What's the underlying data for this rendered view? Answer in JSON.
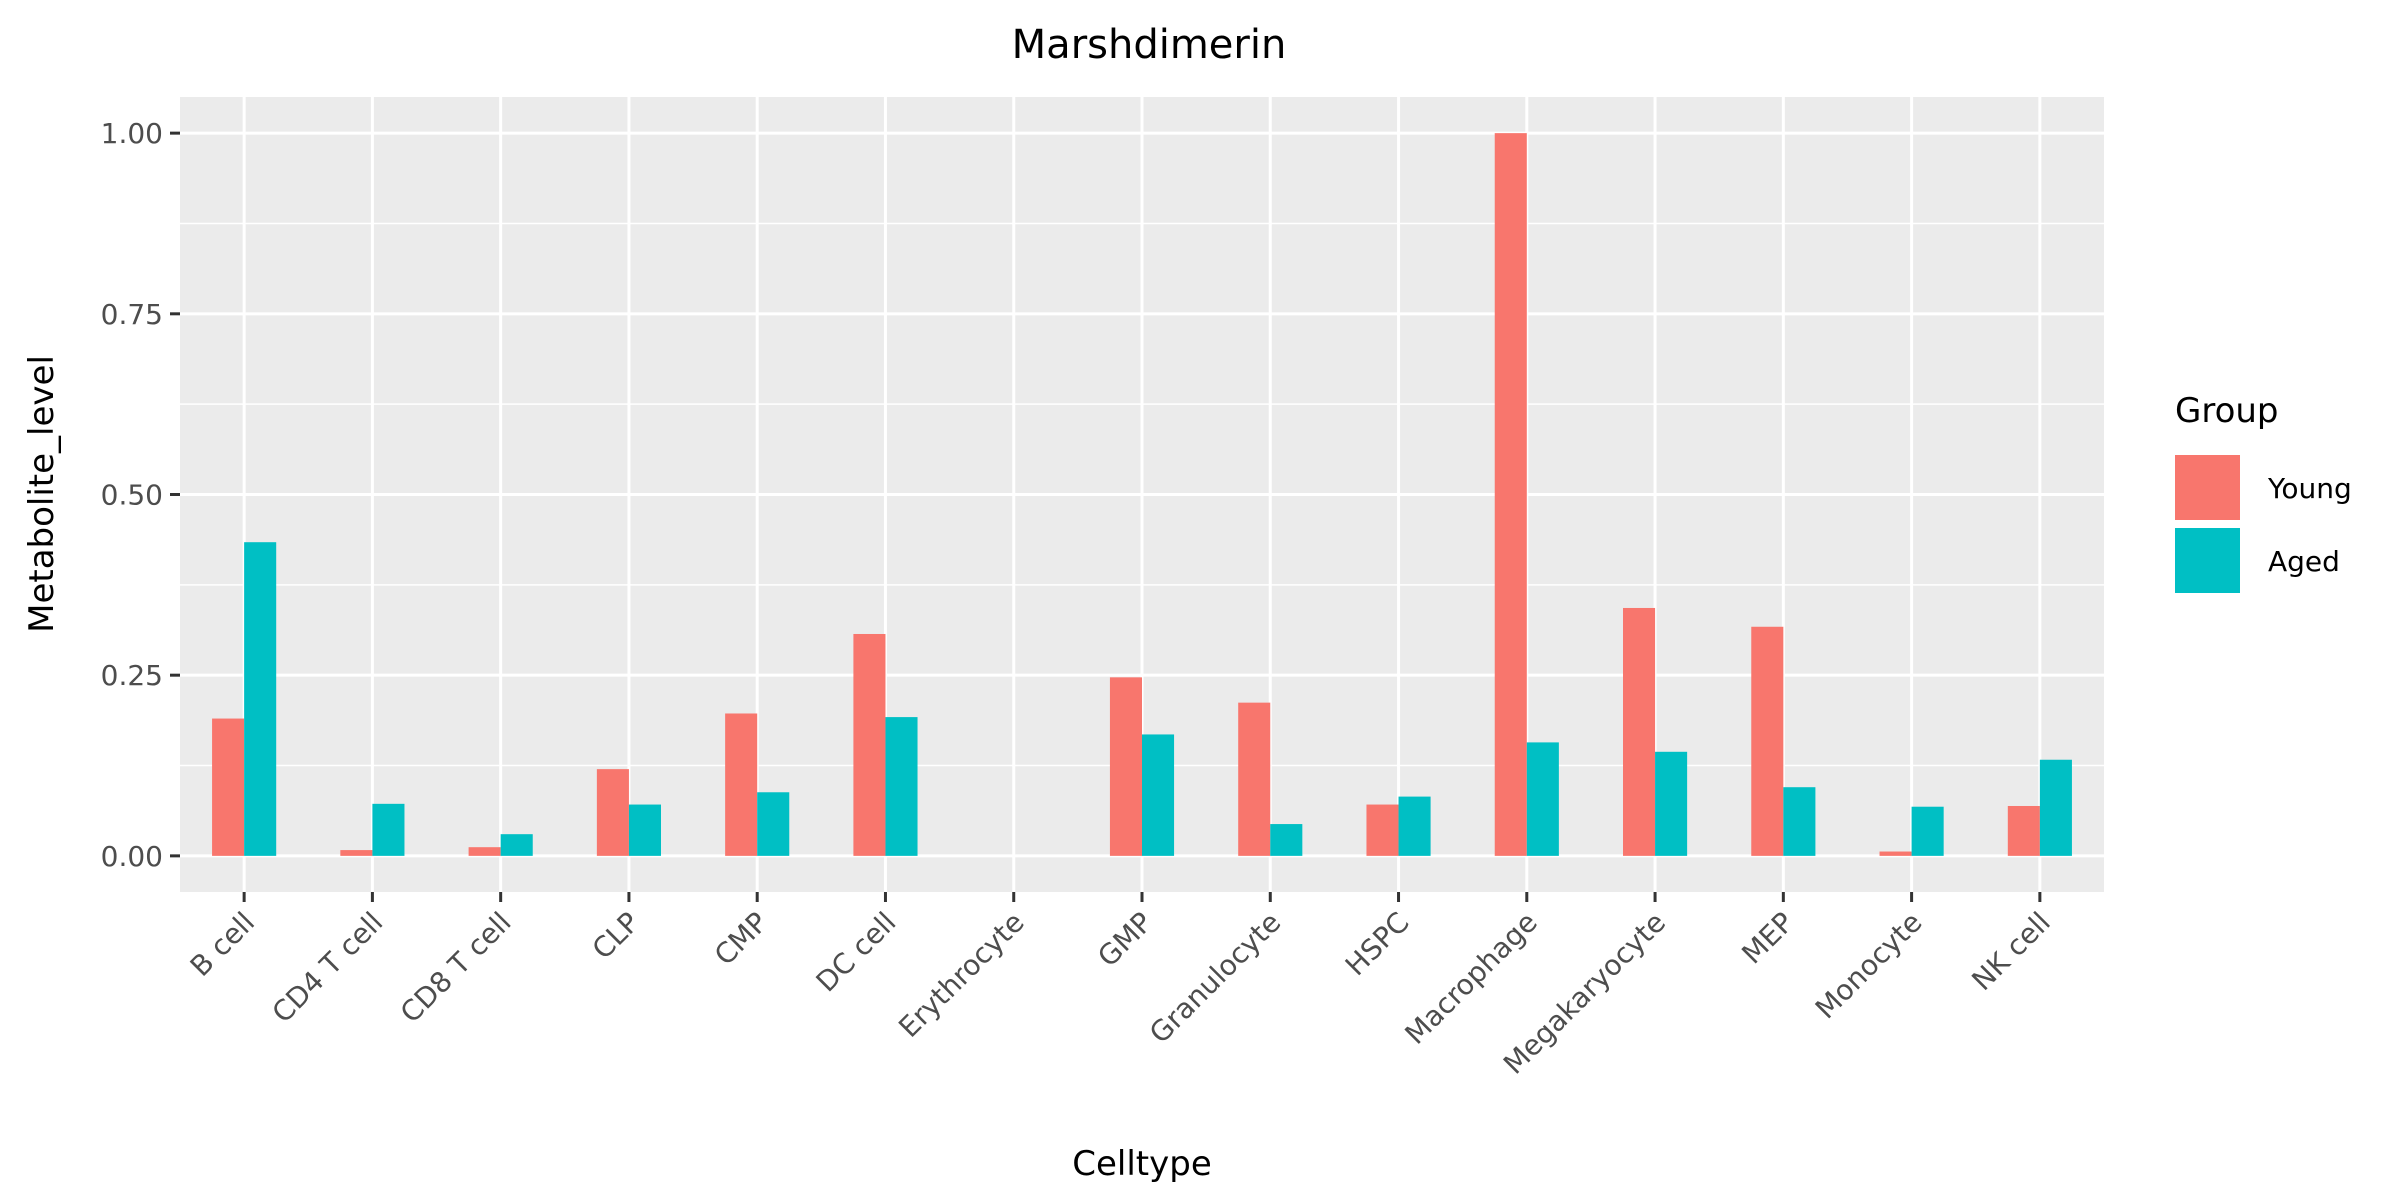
{
  "chart_data": {
    "type": "bar",
    "title": "Marshdimerin",
    "xlabel": "Celltype",
    "ylabel": "Metabolite_level",
    "ylim": [
      -0.05,
      1.05
    ],
    "yticks": [
      0.0,
      0.25,
      0.5,
      0.75,
      1.0
    ],
    "ytick_labels": [
      "0.00",
      "0.25",
      "0.50",
      "0.75",
      "1.00"
    ],
    "categories": [
      "B cell",
      "CD4 T cell",
      "CD8 T cell",
      "CLP",
      "CMP",
      "DC cell",
      "Erythrocyte",
      "GMP",
      "Granulocyte",
      "HSPC",
      "Macrophage",
      "Megakaryocyte",
      "MEP",
      "Monocyte",
      "NK cell"
    ],
    "series": [
      {
        "name": "Young",
        "color": "#F8766D",
        "values": [
          0.19,
          0.008,
          0.012,
          0.12,
          0.197,
          0.307,
          0.0,
          0.247,
          0.212,
          0.071,
          1.0,
          0.343,
          0.317,
          0.006,
          0.069
        ]
      },
      {
        "name": "Aged",
        "color": "#00BFC4",
        "values": [
          0.434,
          0.072,
          0.03,
          0.071,
          0.088,
          0.192,
          0.0,
          0.168,
          0.044,
          0.082,
          0.157,
          0.144,
          0.095,
          0.068,
          0.133
        ]
      }
    ],
    "legend": {
      "title": "Group",
      "position": "right"
    },
    "grid": true,
    "panel_background": "#EBEBEB"
  }
}
